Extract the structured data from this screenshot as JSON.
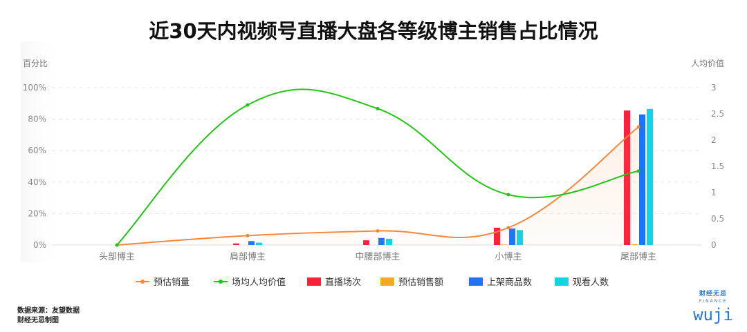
{
  "chart_data": {
    "type": "bar",
    "title": "近30天内视频号直播大盘各等级博主销售占比情况",
    "ylabel": "百分比",
    "y2label": "人均价值",
    "ylim": [
      0,
      100
    ],
    "y2lim": [
      0,
      3
    ],
    "yticks": [
      "0%",
      "20%",
      "40%",
      "60%",
      "80%",
      "100%"
    ],
    "y2ticks": [
      "0",
      "0.5",
      "1",
      "1.5",
      "2",
      "2.5",
      "3"
    ],
    "categories": [
      "头部博主",
      "肩部博主",
      "中腰部博主",
      "小博主",
      "尾部博主"
    ],
    "series": [
      {
        "name": "预估销量",
        "type": "line",
        "axis": "left",
        "color": "#f5873a",
        "values": [
          0,
          6,
          9,
          11,
          75
        ]
      },
      {
        "name": "场均人均价值",
        "type": "line",
        "axis": "right",
        "color": "#22c414",
        "values": [
          0,
          2.67,
          2.6,
          0.96,
          1.41
        ]
      },
      {
        "name": "直播场次",
        "type": "bar",
        "color": "#ff1f3a",
        "values": [
          0,
          1,
          3,
          11,
          85.5
        ]
      },
      {
        "name": "预估销售额",
        "type": "bar",
        "color": "#ffa81f",
        "values": [
          0,
          0,
          0,
          0.3,
          0.5
        ]
      },
      {
        "name": "上架商品数",
        "type": "bar",
        "color": "#1b74ff",
        "values": [
          0,
          2.5,
          4.5,
          10.5,
          83
        ]
      },
      {
        "name": "观看人数",
        "type": "bar",
        "color": "#0fd3e8",
        "values": [
          0,
          1.5,
          4,
          9.5,
          86.5
        ]
      }
    ],
    "grid": true,
    "legend": "bottom"
  },
  "footer": {
    "source": "数据来源：友望数据",
    "credit": "财经无忌制图"
  },
  "logo": {
    "cn": "财经无忌",
    "en": "FINANCE",
    "wordmark": "wuji"
  }
}
